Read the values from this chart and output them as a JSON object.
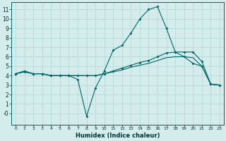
{
  "xlabel": "Humidex (Indice chaleur)",
  "background_color": "#d4ecec",
  "grid_color": "#b8d8d8",
  "line_color": "#006666",
  "xlim": [
    -0.5,
    23.5
  ],
  "ylim": [
    -1.2,
    11.8
  ],
  "yticks": [
    0,
    1,
    2,
    3,
    4,
    5,
    6,
    7,
    8,
    9,
    10,
    11
  ],
  "ytick_labels": [
    "-0",
    "1",
    "2",
    "3",
    "4",
    "5",
    "6",
    "7",
    "8",
    "9",
    "10",
    "11"
  ],
  "xticks": [
    0,
    1,
    2,
    3,
    4,
    5,
    6,
    7,
    8,
    9,
    10,
    11,
    12,
    13,
    14,
    15,
    16,
    17,
    18,
    19,
    20,
    21,
    22,
    23
  ],
  "series1_x": [
    0,
    1,
    2,
    3,
    4,
    5,
    6,
    7,
    8,
    9,
    10,
    11,
    12,
    13,
    14,
    15,
    16,
    17,
    18,
    19,
    20,
    21,
    22,
    23
  ],
  "series1_y": [
    4.2,
    4.5,
    4.2,
    4.2,
    4.0,
    4.0,
    4.0,
    3.6,
    -0.3,
    2.7,
    4.5,
    6.7,
    7.2,
    8.5,
    10.0,
    11.0,
    11.3,
    9.0,
    6.5,
    6.0,
    5.3,
    5.0,
    3.1,
    3.0
  ],
  "series2_x": [
    0,
    1,
    2,
    3,
    4,
    5,
    6,
    7,
    8,
    9,
    10,
    11,
    12,
    13,
    14,
    15,
    16,
    17,
    18,
    19,
    20,
    21,
    22,
    23
  ],
  "series2_y": [
    4.2,
    4.4,
    4.2,
    4.2,
    4.0,
    4.0,
    4.0,
    4.0,
    4.0,
    4.0,
    4.2,
    4.5,
    4.8,
    5.1,
    5.4,
    5.6,
    6.0,
    6.4,
    6.5,
    6.5,
    6.5,
    5.5,
    3.1,
    3.0
  ],
  "series3_x": [
    0,
    1,
    2,
    3,
    4,
    5,
    6,
    7,
    8,
    9,
    10,
    11,
    12,
    13,
    14,
    15,
    16,
    17,
    18,
    19,
    20,
    21,
    22,
    23
  ],
  "series3_y": [
    4.2,
    4.4,
    4.2,
    4.2,
    4.0,
    4.0,
    4.0,
    4.0,
    4.0,
    4.0,
    4.2,
    4.4,
    4.6,
    4.9,
    5.1,
    5.3,
    5.6,
    5.9,
    6.0,
    6.0,
    5.9,
    5.0,
    3.1,
    3.0
  ]
}
